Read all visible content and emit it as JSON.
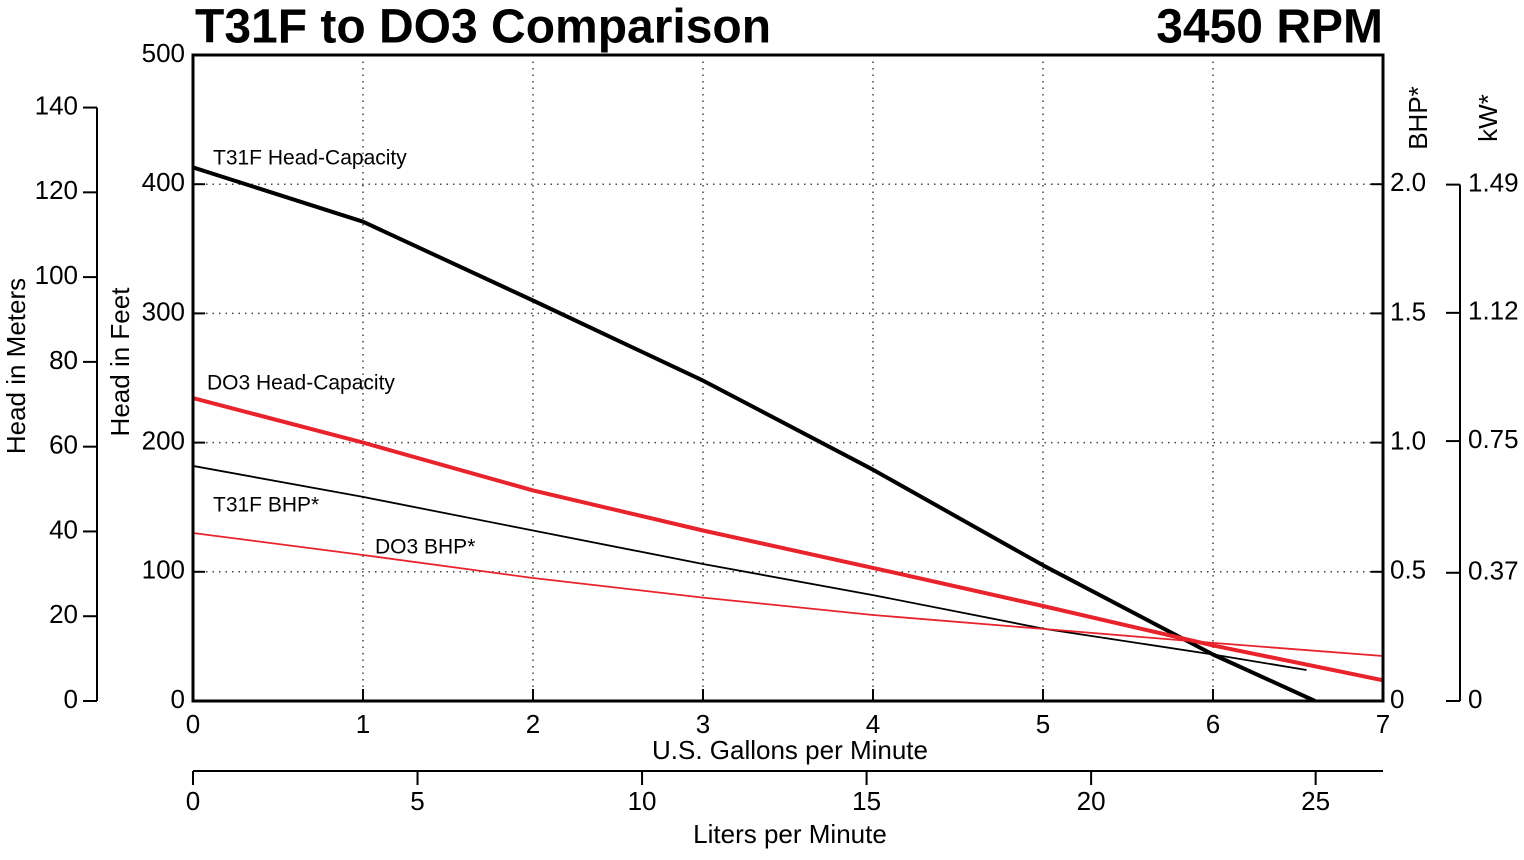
{
  "chart_data": {
    "type": "line",
    "title": "T31F to DO3 Comparison",
    "subtitle": "3450 RPM",
    "xlabel": "U.S. Gallons per Minute",
    "ylabel": "Head in Feet",
    "y2label": "BHP*",
    "xlim": [
      0,
      7
    ],
    "xticks": [
      0,
      1,
      2,
      3,
      4,
      5,
      6,
      7
    ],
    "ylim": [
      0,
      500
    ],
    "yticks": [
      0,
      100,
      200,
      300,
      400,
      500
    ],
    "y2lim": [
      0,
      2.5
    ],
    "y2ticks": [
      0,
      0.5,
      {
        "value": 1,
        "label": "1.0"
      },
      1.5,
      {
        "value": 2,
        "label": "2.0"
      }
    ],
    "meters_axis": {
      "label": "Head in Meters",
      "lim": [
        0,
        152.4
      ],
      "ticks": [
        0,
        20,
        40,
        60,
        80,
        100,
        120,
        140
      ]
    },
    "kw_axis": {
      "label": "kW*",
      "lim": [
        0,
        1.864
      ],
      "ticks": [
        0,
        0.37,
        0.75,
        1.12,
        1.49
      ]
    },
    "liters_axis": {
      "label": "Liters per Minute",
      "lim": [
        0,
        26.5
      ],
      "ticks": [
        0,
        5,
        10,
        15,
        20,
        25
      ]
    },
    "grid": true,
    "series": [
      {
        "name": "T31F Head-Capacity",
        "color": "#000000",
        "x": [
          0,
          1,
          2,
          3,
          4,
          5,
          6,
          6.6
        ],
        "values": [
          413,
          371,
          310,
          248,
          179,
          105,
          36,
          0
        ]
      },
      {
        "name": "DO3 Head-Capacity",
        "color": "#e8232b",
        "x": [
          0,
          1,
          2,
          3,
          4,
          5,
          6,
          7
        ],
        "values": [
          234.5,
          200,
          163,
          132,
          103,
          73.5,
          43,
          16
        ]
      },
      {
        "name": "T31F BHP*",
        "color": "#000000",
        "axis": "y2",
        "x": [
          0,
          1,
          2,
          3,
          4,
          5,
          6,
          6.55
        ],
        "values": [
          0.91,
          0.79,
          0.66,
          0.53,
          0.41,
          0.28,
          0.18,
          0.12
        ]
      },
      {
        "name": "DO3 BHP*",
        "color": "#e8232b",
        "axis": "y2",
        "x": [
          0,
          1,
          2,
          3,
          4,
          5,
          6,
          7
        ],
        "values": [
          0.65,
          0.565,
          0.476,
          0.4,
          0.333,
          0.279,
          0.225,
          0.174
        ]
      }
    ]
  }
}
